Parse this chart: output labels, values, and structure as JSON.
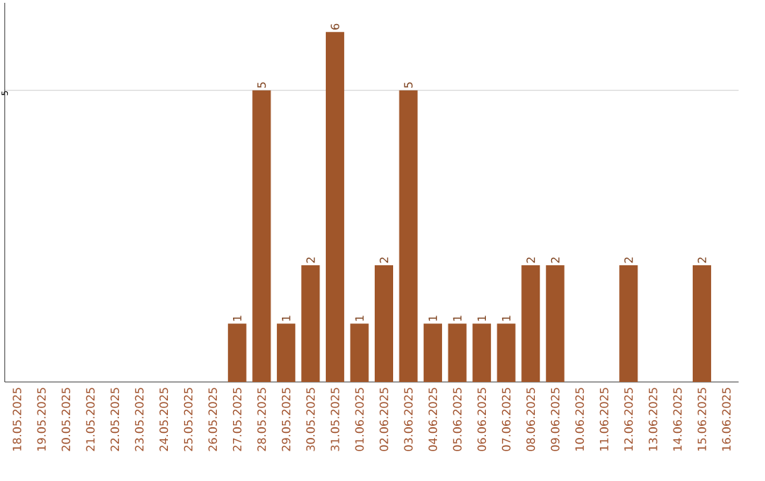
{
  "chart_data": {
    "type": "bar",
    "categories": [
      "18.05.2025",
      "19.05.2025",
      "20.05.2025",
      "21.05.2025",
      "22.05.2025",
      "23.05.2025",
      "24.05.2025",
      "25.05.2025",
      "26.05.2025",
      "27.05.2025",
      "28.05.2025",
      "29.05.2025",
      "30.05.2025",
      "31.05.2025",
      "01.06.2025",
      "02.06.2025",
      "03.06.2025",
      "04.06.2025",
      "05.06.2025",
      "06.06.2025",
      "07.06.2025",
      "08.06.2025",
      "09.06.2025",
      "10.06.2025",
      "11.06.2025",
      "12.06.2025",
      "13.06.2025",
      "14.06.2025",
      "15.06.2025",
      "16.06.2025"
    ],
    "values": [
      0,
      0,
      0,
      0,
      0,
      0,
      0,
      0,
      0,
      1,
      5,
      1,
      2,
      6,
      1,
      2,
      5,
      1,
      1,
      1,
      1,
      2,
      2,
      0,
      0,
      2,
      0,
      0,
      2,
      0
    ],
    "value_labels": [
      null,
      null,
      null,
      null,
      null,
      null,
      null,
      null,
      null,
      "1",
      "5",
      "1",
      "2",
      "6",
      "1",
      "2",
      "5",
      "1",
      "1",
      "1",
      "1",
      "2",
      "2",
      null,
      null,
      "2",
      null,
      null,
      "2",
      null
    ],
    "color": "#a0562a",
    "ylim": [
      0,
      6.5
    ],
    "yticks": [
      5
    ],
    "grid": "y"
  }
}
